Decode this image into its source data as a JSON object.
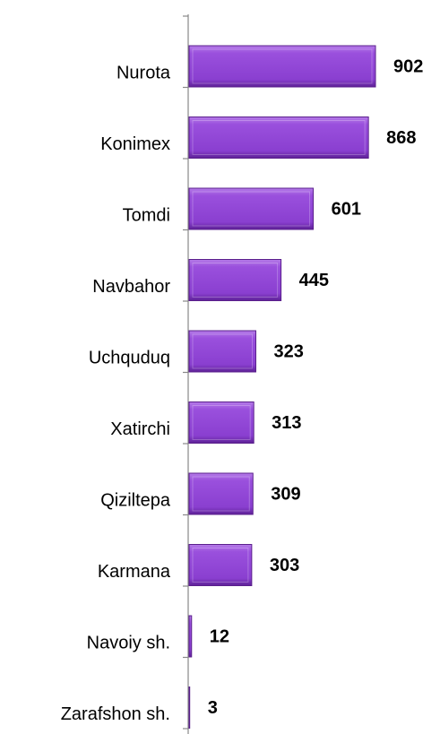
{
  "chart_data": {
    "type": "hbar",
    "categories": [
      "Nurota",
      "Konimex",
      "Tomdi",
      "Navbahor",
      "Uchquduq",
      "Xatirchi",
      "Qiziltepa",
      "Karmana",
      "Navoiy sh.",
      "Zarafshon sh."
    ],
    "values": [
      902,
      868,
      601,
      445,
      323,
      313,
      309,
      303,
      12,
      3
    ],
    "color": "#8e44d6"
  }
}
